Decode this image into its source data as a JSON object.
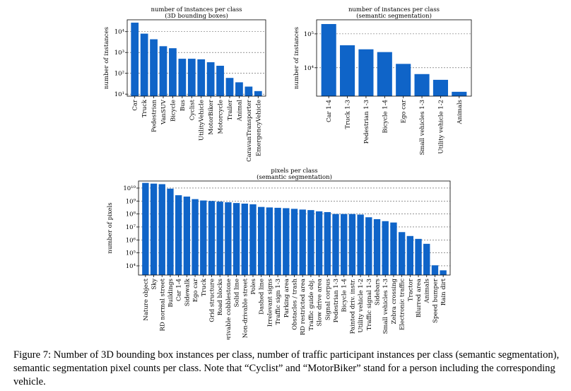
{
  "chart_data": [
    {
      "type": "bar",
      "title": "number of instances per class",
      "subtitle": "(3D bounding boxes)",
      "ylabel": "number of instances",
      "categories": [
        "Car",
        "Truck",
        "Pedestrian",
        "VanSUV",
        "Bicycle",
        "Bus",
        "Cyclist",
        "UtilityVehicle",
        "MotorBiker",
        "Motorcycle",
        "Trailer",
        "Animal",
        "CaravanTransporter",
        "EmergencyVehicle"
      ],
      "values": [
        27000,
        8000,
        4300,
        2000,
        1600,
        500,
        500,
        470,
        340,
        230,
        60,
        37,
        23,
        14
      ],
      "color": "#0f64c8",
      "log_scale": true,
      "grid": true,
      "ylim": [
        8,
        37000
      ],
      "yticks": [
        {
          "value": 10,
          "label": "10¹"
        },
        {
          "value": 100,
          "label": "10²"
        },
        {
          "value": 1000,
          "label": "10³"
        },
        {
          "value": 10000,
          "label": "10⁴"
        }
      ]
    },
    {
      "type": "bar",
      "title": "number of instances per class",
      "subtitle": "(semantic segmentation)",
      "ylabel": "number of instances",
      "categories": [
        "Car 1-4",
        "Truck 1-3",
        "Pedestrian 1-3",
        "Bicycle 1-4",
        "Ego car",
        "Small vehicles 1-3",
        "Utility vehicle 1-2",
        "Animals"
      ],
      "values": [
        195000,
        46000,
        35000,
        29000,
        13000,
        6500,
        4400,
        1950
      ],
      "color": "#0f64c8",
      "log_scale": true,
      "grid": true,
      "ylim": [
        1450,
        260000
      ],
      "yticks": [
        {
          "value": 10000,
          "label": "10⁴"
        },
        {
          "value": 100000,
          "label": "10⁵"
        }
      ]
    },
    {
      "type": "bar",
      "title": "pixels per class",
      "subtitle": "(semantic segmentation)",
      "ylabel": "number of pixels",
      "categories": [
        "Nature object",
        "Sky",
        "RD normal street",
        "Buildings",
        "Car 1-4",
        "Sidewalk",
        "Ego car",
        "Truck",
        "Grid structure",
        "Road blocks",
        "Drivable cobblestone",
        "Solid line",
        "Non-drivable street",
        "Poles",
        "Dashed line",
        "Irrelevant signs",
        "Traffic sign 1-3",
        "Parking area",
        "Obstacles / trash",
        "RD restricted area",
        "Traffic guide obj.",
        "Slow drive area",
        "Signal corpus",
        "Pedestrian 1-3",
        "Bicycle 1-4",
        "Painted driv. instr.",
        "Utility vehicle 1-2",
        "Traffic signal 1-3",
        "Sidebars",
        "Small vehicles 1-3",
        "Zebra crossing",
        "Electronic traffic",
        "Tractor",
        "Blurred area",
        "Animals",
        "Speed bumper",
        "Rain dirt"
      ],
      "values": [
        25000000000,
        22000000000,
        20000000000,
        9000000000,
        2800000000,
        2200000000,
        1400000000,
        1100000000,
        1000000000,
        900000000,
        800000000,
        700000000,
        630000000,
        560000000,
        350000000,
        320000000,
        300000000,
        280000000,
        250000000,
        220000000,
        200000000,
        160000000,
        140000000,
        100000000,
        100000000,
        100000000,
        90000000,
        56000000,
        40000000,
        28000000,
        22000000,
        4000000,
        2000000,
        1200000,
        500000,
        11000,
        4500
      ],
      "color": "#0f64c8",
      "log_scale": true,
      "grid": true,
      "ylim": [
        1950,
        35000000000
      ],
      "yticks": [
        {
          "value": 10000,
          "label": "10⁴"
        },
        {
          "value": 100000,
          "label": "10⁵"
        },
        {
          "value": 1000000,
          "label": "10⁶"
        },
        {
          "value": 10000000,
          "label": "10⁷"
        },
        {
          "value": 100000000,
          "label": "10⁸"
        },
        {
          "value": 1000000000,
          "label": "10⁹"
        },
        {
          "value": 10000000000,
          "label": "10¹⁰"
        }
      ]
    }
  ],
  "caption": "Figure 7: Number of 3D bounding box instances per class, number of traffic participant instances per class (semantic segmentation), semantic segmentation pixel counts per class. Note that “Cyclist” and “MotorBiker” stand for a person including the corresponding vehicle."
}
